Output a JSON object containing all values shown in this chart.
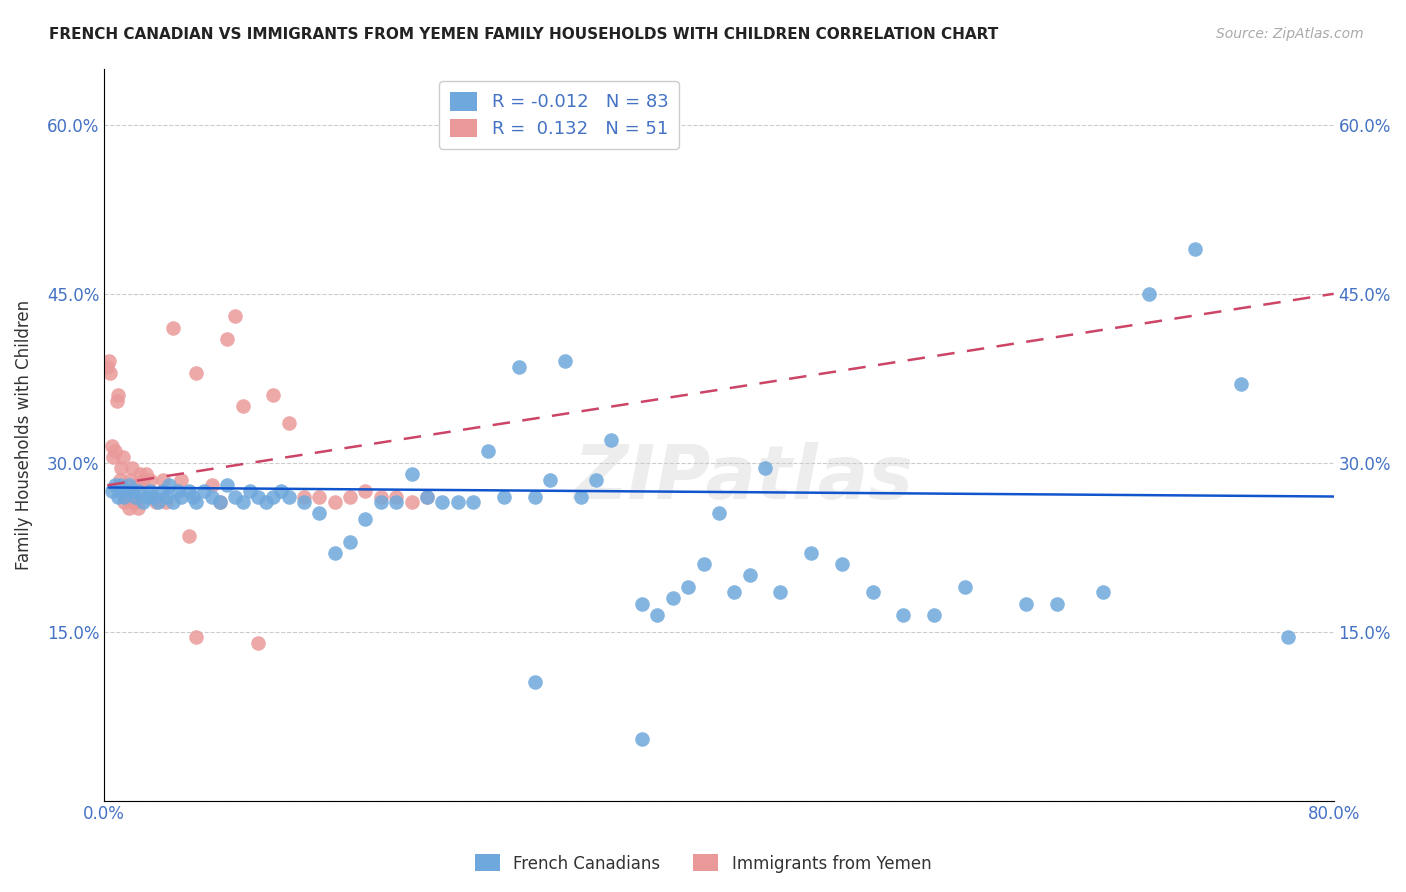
{
  "title": "FRENCH CANADIAN VS IMMIGRANTS FROM YEMEN FAMILY HOUSEHOLDS WITH CHILDREN CORRELATION CHART",
  "source": "Source: ZipAtlas.com",
  "ylabel": "Family Households with Children",
  "xlim": [
    0.0,
    0.8
  ],
  "ylim": [
    0.0,
    0.65
  ],
  "yticks": [
    0.0,
    0.15,
    0.3,
    0.45,
    0.6
  ],
  "ytick_labels": [
    "",
    "15.0%",
    "30.0%",
    "45.0%",
    "60.0%"
  ],
  "xticks": [
    0.0,
    0.1,
    0.2,
    0.3,
    0.4,
    0.5,
    0.6,
    0.7,
    0.8
  ],
  "xtick_labels": [
    "0.0%",
    "",
    "",
    "",
    "",
    "",
    "",
    "",
    "80.0%"
  ],
  "blue_color": "#6fa8dc",
  "pink_color": "#ea9999",
  "blue_line_color": "#1155cc",
  "pink_line_color": "#cc4466",
  "legend_blue_label": "French Canadians",
  "legend_pink_label": "Immigrants from Yemen",
  "R_blue": "-0.012",
  "N_blue": "83",
  "R_pink": "0.132",
  "N_pink": "51",
  "watermark": "ZIPatlas",
  "blue_x": [
    0.005,
    0.007,
    0.009,
    0.01,
    0.012,
    0.013,
    0.015,
    0.016,
    0.018,
    0.02,
    0.022,
    0.025,
    0.028,
    0.03,
    0.032,
    0.035,
    0.038,
    0.04,
    0.042,
    0.045,
    0.048,
    0.05,
    0.055,
    0.058,
    0.06,
    0.065,
    0.07,
    0.075,
    0.08,
    0.085,
    0.09,
    0.095,
    0.1,
    0.105,
    0.11,
    0.115,
    0.12,
    0.13,
    0.14,
    0.15,
    0.16,
    0.17,
    0.18,
    0.19,
    0.2,
    0.21,
    0.22,
    0.23,
    0.24,
    0.25,
    0.26,
    0.27,
    0.28,
    0.29,
    0.3,
    0.31,
    0.32,
    0.33,
    0.35,
    0.36,
    0.37,
    0.38,
    0.39,
    0.4,
    0.41,
    0.42,
    0.44,
    0.46,
    0.48,
    0.5,
    0.52,
    0.54,
    0.56,
    0.6,
    0.62,
    0.65,
    0.68,
    0.71,
    0.74,
    0.77,
    0.35,
    0.28,
    0.43
  ],
  "blue_y": [
    0.275,
    0.28,
    0.27,
    0.28,
    0.275,
    0.27,
    0.275,
    0.28,
    0.275,
    0.27,
    0.275,
    0.265,
    0.27,
    0.275,
    0.27,
    0.265,
    0.275,
    0.27,
    0.28,
    0.265,
    0.275,
    0.27,
    0.275,
    0.27,
    0.265,
    0.275,
    0.27,
    0.265,
    0.28,
    0.27,
    0.265,
    0.275,
    0.27,
    0.265,
    0.27,
    0.275,
    0.27,
    0.265,
    0.255,
    0.22,
    0.23,
    0.25,
    0.265,
    0.265,
    0.29,
    0.27,
    0.265,
    0.265,
    0.265,
    0.31,
    0.27,
    0.385,
    0.27,
    0.285,
    0.39,
    0.27,
    0.285,
    0.32,
    0.175,
    0.165,
    0.18,
    0.19,
    0.21,
    0.255,
    0.185,
    0.2,
    0.185,
    0.22,
    0.21,
    0.185,
    0.165,
    0.165,
    0.19,
    0.175,
    0.175,
    0.185,
    0.45,
    0.49,
    0.37,
    0.145,
    0.055,
    0.105,
    0.295
  ],
  "pink_x": [
    0.002,
    0.003,
    0.004,
    0.005,
    0.006,
    0.007,
    0.008,
    0.009,
    0.01,
    0.011,
    0.012,
    0.013,
    0.014,
    0.015,
    0.016,
    0.017,
    0.018,
    0.019,
    0.02,
    0.021,
    0.022,
    0.023,
    0.025,
    0.027,
    0.03,
    0.032,
    0.034,
    0.038,
    0.04,
    0.045,
    0.05,
    0.055,
    0.06,
    0.07,
    0.075,
    0.08,
    0.085,
    0.09,
    0.1,
    0.11,
    0.12,
    0.13,
    0.14,
    0.15,
    0.16,
    0.17,
    0.18,
    0.19,
    0.2,
    0.21,
    0.06
  ],
  "pink_y": [
    0.385,
    0.39,
    0.38,
    0.315,
    0.305,
    0.31,
    0.355,
    0.36,
    0.285,
    0.295,
    0.305,
    0.265,
    0.27,
    0.275,
    0.26,
    0.285,
    0.295,
    0.265,
    0.265,
    0.28,
    0.26,
    0.29,
    0.285,
    0.29,
    0.285,
    0.27,
    0.265,
    0.285,
    0.265,
    0.42,
    0.285,
    0.235,
    0.38,
    0.28,
    0.265,
    0.41,
    0.43,
    0.35,
    0.14,
    0.36,
    0.335,
    0.27,
    0.27,
    0.265,
    0.27,
    0.275,
    0.27,
    0.27,
    0.265,
    0.27,
    0.145
  ],
  "blue_line_x": [
    0.003,
    0.8
  ],
  "blue_line_y": [
    0.278,
    0.27
  ],
  "pink_line_x": [
    0.002,
    0.8
  ],
  "pink_line_y": [
    0.28,
    0.45
  ]
}
